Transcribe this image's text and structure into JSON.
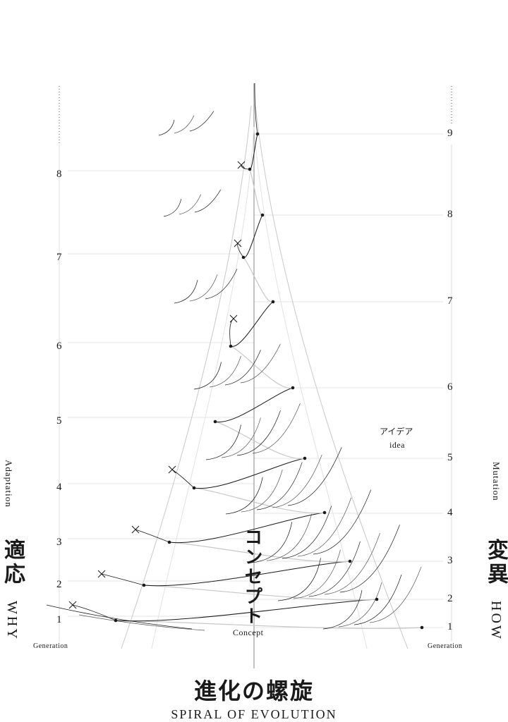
{
  "title": {
    "japanese": "進化の螺旋",
    "english": "SPIRAL OF EVOLUTION"
  },
  "left_axis": {
    "label_en": "Adaptation",
    "label_ja": "適応",
    "label_why": "WHY",
    "generation_label": "Generation",
    "ticks": [
      "1",
      "2",
      "3",
      "4",
      "5",
      "6",
      "7",
      "8"
    ]
  },
  "right_axis": {
    "label_en": "Mutation",
    "label_ja": "変異",
    "label_how": "HOW",
    "generation_label": "Generation",
    "ticks": [
      "1",
      "2",
      "3",
      "4",
      "5",
      "6",
      "7",
      "8",
      "9"
    ]
  },
  "center": {
    "concept_ja": "コンセプト",
    "concept_en": "Concept"
  },
  "annotation": {
    "idea_ja": "アイデア",
    "idea_en": "idea"
  },
  "colors": {
    "ink": "#1a1a1a",
    "light_line": "#c8c8c8",
    "gridline": "#dcdcdc"
  },
  "markers": {
    "extinct_icon": "cross-mark-icon",
    "node_icon": "dot-icon"
  }
}
